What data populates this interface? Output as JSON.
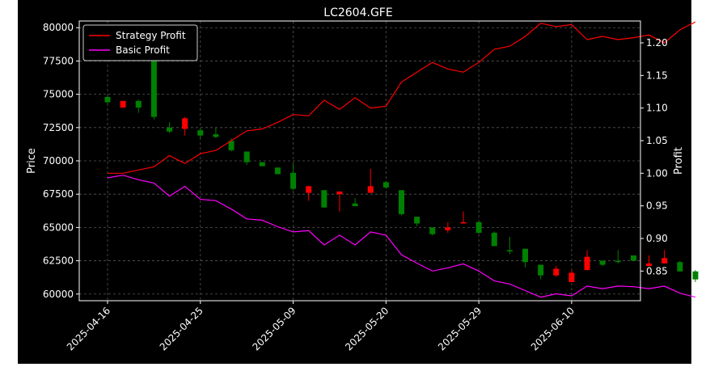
{
  "chart_data": {
    "type": "candlestick",
    "title": "LC2604.GFE",
    "ylabel_left": "Price",
    "ylabel_right": "Profit",
    "ylim_left": [
      59500,
      80500
    ],
    "ylim_right": [
      0.8045,
      1.2335
    ],
    "yticks_left": [
      60000,
      62500,
      65000,
      67500,
      70000,
      72500,
      75000,
      77500,
      80000
    ],
    "yticks_right": [
      0.85,
      0.9,
      0.95,
      1.0,
      1.05,
      1.1,
      1.15,
      1.2
    ],
    "xticks": [
      {
        "index": 0,
        "label": "2025-04-16"
      },
      {
        "index": 6,
        "label": "2025-04-25"
      },
      {
        "index": 12,
        "label": "2025-05-09"
      },
      {
        "index": 18,
        "label": "2025-05-20"
      },
      {
        "index": 24,
        "label": "2025-05-29"
      },
      {
        "index": 30,
        "label": "2025-06-10"
      }
    ],
    "grid": true,
    "legend_position": "top-left",
    "legend": [
      "Strategy Profit",
      "Basic Profit"
    ],
    "colors": {
      "background": "#000000",
      "up": "#008000",
      "down": "#ff0000",
      "strategy": "#ff0000",
      "basic": "#ff00ff",
      "grid": "#555555",
      "axis": "#ffffff"
    },
    "candles": [
      {
        "o": 74400,
        "h": 74900,
        "l": 74300,
        "c": 74800
      },
      {
        "o": 74500,
        "h": 74500,
        "l": 74000,
        "c": 74000
      },
      {
        "o": 74000,
        "h": 74600,
        "l": 73600,
        "c": 74500
      },
      {
        "o": 73300,
        "h": 78600,
        "l": 73100,
        "c": 78400
      },
      {
        "o": 72200,
        "h": 72900,
        "l": 72100,
        "c": 72500
      },
      {
        "o": 73200,
        "h": 73300,
        "l": 71900,
        "c": 72400
      },
      {
        "o": 71900,
        "h": 72500,
        "l": 71700,
        "c": 72300
      },
      {
        "o": 71800,
        "h": 72500,
        "l": 71700,
        "c": 72000
      },
      {
        "o": 70800,
        "h": 71700,
        "l": 70700,
        "c": 71500
      },
      {
        "o": 69900,
        "h": 70700,
        "l": 69700,
        "c": 70700
      },
      {
        "o": 69600,
        "h": 69900,
        "l": 69600,
        "c": 69900
      },
      {
        "o": 69000,
        "h": 69500,
        "l": 69000,
        "c": 69500
      },
      {
        "o": 67900,
        "h": 69800,
        "l": 67800,
        "c": 69100
      },
      {
        "o": 68100,
        "h": 68100,
        "l": 67000,
        "c": 67600
      },
      {
        "o": 66500,
        "h": 67800,
        "l": 66500,
        "c": 67800
      },
      {
        "o": 67700,
        "h": 67700,
        "l": 66200,
        "c": 67500
      },
      {
        "o": 66600,
        "h": 67200,
        "l": 66600,
        "c": 66800
      },
      {
        "o": 68100,
        "h": 69400,
        "l": 67600,
        "c": 67600
      },
      {
        "o": 68000,
        "h": 68500,
        "l": 67900,
        "c": 68400
      },
      {
        "o": 66000,
        "h": 67800,
        "l": 65900,
        "c": 67800
      },
      {
        "o": 65300,
        "h": 65800,
        "l": 65100,
        "c": 65800
      },
      {
        "o": 64500,
        "h": 65000,
        "l": 64400,
        "c": 65000
      },
      {
        "o": 65000,
        "h": 65400,
        "l": 64600,
        "c": 64800
      },
      {
        "o": 65400,
        "h": 66200,
        "l": 65300,
        "c": 65300
      },
      {
        "o": 64600,
        "h": 65500,
        "l": 64500,
        "c": 65400
      },
      {
        "o": 63600,
        "h": 64700,
        "l": 63600,
        "c": 64600
      },
      {
        "o": 63200,
        "h": 64300,
        "l": 63000,
        "c": 63300
      },
      {
        "o": 62400,
        "h": 63400,
        "l": 62000,
        "c": 63400
      },
      {
        "o": 61400,
        "h": 62200,
        "l": 61100,
        "c": 62200
      },
      {
        "o": 61900,
        "h": 62100,
        "l": 61300,
        "c": 61400
      },
      {
        "o": 61600,
        "h": 61800,
        "l": 60900,
        "c": 60900
      },
      {
        "o": 62800,
        "h": 63300,
        "l": 61800,
        "c": 61800
      },
      {
        "o": 62200,
        "h": 62500,
        "l": 62100,
        "c": 62500
      },
      {
        "o": 62400,
        "h": 63300,
        "l": 62300,
        "c": 62500
      },
      {
        "o": 62500,
        "h": 62900,
        "l": 62500,
        "c": 62900
      },
      {
        "o": 62300,
        "h": 62900,
        "l": 62100,
        "c": 62100
      },
      {
        "o": 62700,
        "h": 63300,
        "l": 62300,
        "c": 62300
      },
      {
        "o": 61700,
        "h": 62500,
        "l": 61700,
        "c": 62400
      },
      {
        "o": 61100,
        "h": 61800,
        "l": 60900,
        "c": 61700
      }
    ],
    "series": [
      {
        "name": "Strategy Profit",
        "color": "#ff0000",
        "values": [
          1.0,
          1.0,
          1.005,
          1.01,
          1.027,
          1.015,
          1.03,
          1.035,
          1.05,
          1.065,
          1.068,
          1.078,
          1.09,
          1.088,
          1.112,
          1.098,
          1.116,
          1.1,
          1.103,
          1.14,
          1.155,
          1.17,
          1.16,
          1.155,
          1.17,
          1.19,
          1.195,
          1.21,
          1.23,
          1.225,
          1.228,
          1.205,
          1.21,
          1.205,
          1.208,
          1.212,
          1.2,
          1.22,
          1.232
        ]
      },
      {
        "name": "Basic Profit",
        "color": "#ff00ff",
        "values": [
          0.993,
          0.997,
          0.99,
          0.985,
          0.965,
          0.98,
          0.96,
          0.958,
          0.945,
          0.93,
          0.928,
          0.918,
          0.91,
          0.912,
          0.89,
          0.905,
          0.89,
          0.91,
          0.905,
          0.875,
          0.862,
          0.85,
          0.855,
          0.861,
          0.85,
          0.835,
          0.83,
          0.82,
          0.81,
          0.815,
          0.812,
          0.827,
          0.823,
          0.827,
          0.826,
          0.823,
          0.827,
          0.816,
          0.81
        ]
      }
    ]
  }
}
